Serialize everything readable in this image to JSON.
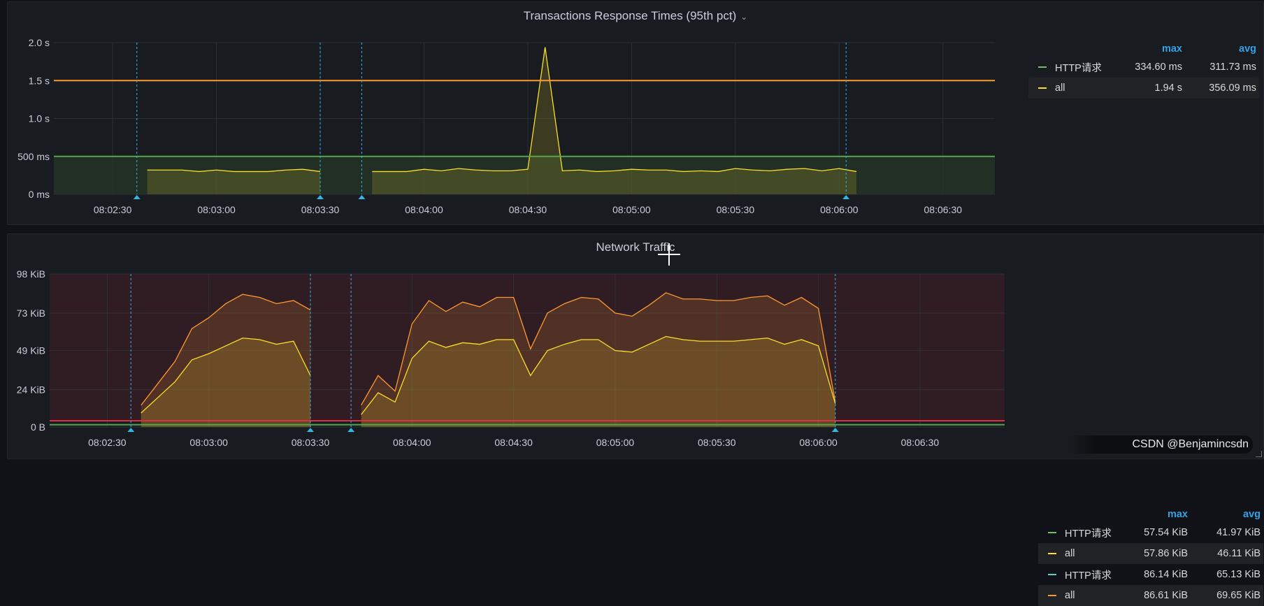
{
  "panels": [
    {
      "title": "Transactions Response Times (95th pct)",
      "legend": {
        "headers": [
          "max",
          "avg"
        ],
        "rows": [
          {
            "name": "HTTP请求",
            "color": "#73bf69",
            "max": "334.60 ms",
            "avg": "311.73 ms"
          },
          {
            "name": "all",
            "color": "#fade2a",
            "max": "1.94 s",
            "avg": "356.09 ms"
          }
        ]
      }
    },
    {
      "title": "Network Traffic",
      "legend": {
        "headers": [
          "max",
          "avg"
        ],
        "rows": [
          {
            "name": "HTTP请求",
            "color": "#73bf69",
            "max": "57.54 KiB",
            "avg": "41.97 KiB"
          },
          {
            "name": "all",
            "color": "#fade2a",
            "max": "57.86 KiB",
            "avg": "46.11 KiB"
          },
          {
            "name": "HTTP请求",
            "color": "#5ad0c8",
            "max": "86.14 KiB",
            "avg": "65.13 KiB"
          },
          {
            "name": "all",
            "color": "#ff9830",
            "max": "86.61 KiB",
            "avg": "69.65 KiB"
          }
        ]
      }
    }
  ],
  "watermark": "CSDN @Benjamincsdn",
  "chart_data": [
    {
      "type": "line",
      "title": "Transactions Response Times (95th pct)",
      "x_unit": "time (HH:MM:SS)",
      "xlim": [
        "08:02:13",
        "08:06:45"
      ],
      "x_ticks": [
        "08:02:30",
        "08:03:00",
        "08:03:30",
        "08:04:00",
        "08:04:30",
        "08:05:00",
        "08:05:30",
        "08:06:00",
        "08:06:30"
      ],
      "y_unit": "s",
      "ylim": [
        0,
        2.0
      ],
      "y_ticks": [
        0,
        0.5,
        1.0,
        1.5,
        2.0
      ],
      "y_tick_labels": [
        "0 ms",
        "500 ms",
        "1.0 s",
        "1.5 s",
        "2.0 s"
      ],
      "thresholds": [
        {
          "value": 0.5,
          "color": "#56a64b",
          "fill_below": true
        },
        {
          "value": 1.5,
          "color": "#ff9830"
        }
      ],
      "annotations": [
        "08:02:37",
        "08:03:30",
        "08:03:42",
        "08:06:02"
      ],
      "series": [
        {
          "name": "all",
          "color": "#fade2a",
          "segments": [
            [
              [
                "08:02:40",
                0.32
              ],
              [
                "08:02:45",
                0.32
              ],
              [
                "08:02:50",
                0.32
              ],
              [
                "08:02:55",
                0.3
              ],
              [
                "08:03:00",
                0.32
              ],
              [
                "08:03:05",
                0.3
              ],
              [
                "08:03:10",
                0.3
              ],
              [
                "08:03:15",
                0.3
              ],
              [
                "08:03:20",
                0.32
              ],
              [
                "08:03:25",
                0.33
              ],
              [
                "08:03:30",
                0.3
              ]
            ],
            [
              [
                "08:03:45",
                0.3
              ],
              [
                "08:03:50",
                0.3
              ],
              [
                "08:03:55",
                0.3
              ],
              [
                "08:04:00",
                0.33
              ],
              [
                "08:04:05",
                0.31
              ],
              [
                "08:04:10",
                0.34
              ],
              [
                "08:04:15",
                0.32
              ],
              [
                "08:04:20",
                0.31
              ],
              [
                "08:04:25",
                0.31
              ],
              [
                "08:04:30",
                0.33
              ],
              [
                "08:04:35",
                1.94
              ],
              [
                "08:04:40",
                0.31
              ],
              [
                "08:04:45",
                0.32
              ],
              [
                "08:04:50",
                0.3
              ],
              [
                "08:04:55",
                0.31
              ],
              [
                "08:05:00",
                0.33
              ],
              [
                "08:05:05",
                0.32
              ],
              [
                "08:05:10",
                0.32
              ],
              [
                "08:05:15",
                0.3
              ],
              [
                "08:05:20",
                0.31
              ],
              [
                "08:05:25",
                0.3
              ],
              [
                "08:05:30",
                0.34
              ],
              [
                "08:05:35",
                0.32
              ],
              [
                "08:05:40",
                0.31
              ],
              [
                "08:05:45",
                0.33
              ],
              [
                "08:05:50",
                0.34
              ],
              [
                "08:05:55",
                0.31
              ],
              [
                "08:06:00",
                0.34
              ],
              [
                "08:06:05",
                0.3
              ]
            ]
          ]
        }
      ]
    },
    {
      "type": "area",
      "title": "Network Traffic",
      "x_unit": "time (HH:MM:SS)",
      "xlim": [
        "08:02:13",
        "08:06:55"
      ],
      "x_ticks": [
        "08:02:30",
        "08:03:00",
        "08:03:30",
        "08:04:00",
        "08:04:30",
        "08:05:00",
        "08:05:30",
        "08:06:00",
        "08:06:30"
      ],
      "y_unit": "KiB",
      "ylim": [
        0,
        98
      ],
      "y_ticks": [
        0,
        24,
        49,
        73,
        98
      ],
      "y_tick_labels": [
        "0 B",
        "24 KiB",
        "49 KiB",
        "73 KiB",
        "98 KiB"
      ],
      "thresholds": [
        {
          "value": 4,
          "color": "#e02f44",
          "fill_above": true
        },
        {
          "value": 1.5,
          "color": "#56a64b"
        }
      ],
      "annotations": [
        "08:02:37",
        "08:03:30",
        "08:03:42",
        "08:06:05"
      ],
      "series": [
        {
          "name": "all",
          "color": "#ff9830",
          "segments": [
            [
              [
                "08:02:40",
                14
              ],
              [
                "08:02:45",
                28
              ],
              [
                "08:02:50",
                42
              ],
              [
                "08:02:55",
                63
              ],
              [
                "08:03:00",
                70
              ],
              [
                "08:03:05",
                79
              ],
              [
                "08:03:10",
                85
              ],
              [
                "08:03:15",
                83
              ],
              [
                "08:03:20",
                79
              ],
              [
                "08:03:25",
                81
              ],
              [
                "08:03:30",
                75
              ]
            ],
            [
              [
                "08:03:45",
                14
              ],
              [
                "08:03:50",
                33
              ],
              [
                "08:03:55",
                23
              ],
              [
                "08:04:00",
                66
              ],
              [
                "08:04:05",
                81
              ],
              [
                "08:04:10",
                74
              ],
              [
                "08:04:15",
                80
              ],
              [
                "08:04:20",
                77
              ],
              [
                "08:04:25",
                83
              ],
              [
                "08:04:30",
                83
              ],
              [
                "08:04:35",
                50
              ],
              [
                "08:04:40",
                73
              ],
              [
                "08:04:45",
                79
              ],
              [
                "08:04:50",
                83
              ],
              [
                "08:04:55",
                82
              ],
              [
                "08:05:00",
                73
              ],
              [
                "08:05:05",
                71
              ],
              [
                "08:05:10",
                78
              ],
              [
                "08:05:15",
                86
              ],
              [
                "08:05:20",
                82
              ],
              [
                "08:05:25",
                82
              ],
              [
                "08:05:30",
                81
              ],
              [
                "08:05:35",
                81
              ],
              [
                "08:05:40",
                83
              ],
              [
                "08:05:45",
                84
              ],
              [
                "08:05:50",
                78
              ],
              [
                "08:05:55",
                83
              ],
              [
                "08:06:00",
                76
              ],
              [
                "08:06:05",
                16
              ]
            ]
          ]
        },
        {
          "name": "all",
          "color": "#fade2a",
          "segments": [
            [
              [
                "08:02:40",
                9
              ],
              [
                "08:02:45",
                19
              ],
              [
                "08:02:50",
                29
              ],
              [
                "08:02:55",
                43
              ],
              [
                "08:03:00",
                47
              ],
              [
                "08:03:05",
                52
              ],
              [
                "08:03:10",
                57
              ],
              [
                "08:03:15",
                56
              ],
              [
                "08:03:20",
                53
              ],
              [
                "08:03:25",
                55
              ],
              [
                "08:03:30",
                33
              ]
            ],
            [
              [
                "08:03:45",
                8
              ],
              [
                "08:03:50",
                22
              ],
              [
                "08:03:55",
                16
              ],
              [
                "08:04:00",
                44
              ],
              [
                "08:04:05",
                55
              ],
              [
                "08:04:10",
                51
              ],
              [
                "08:04:15",
                54
              ],
              [
                "08:04:20",
                53
              ],
              [
                "08:04:25",
                56
              ],
              [
                "08:04:30",
                56
              ],
              [
                "08:04:35",
                33
              ],
              [
                "08:04:40",
                49
              ],
              [
                "08:04:45",
                53
              ],
              [
                "08:04:50",
                56
              ],
              [
                "08:04:55",
                56
              ],
              [
                "08:05:00",
                49
              ],
              [
                "08:05:05",
                48
              ],
              [
                "08:05:10",
                53
              ],
              [
                "08:05:15",
                58
              ],
              [
                "08:05:20",
                56
              ],
              [
                "08:05:25",
                55
              ],
              [
                "08:05:30",
                55
              ],
              [
                "08:05:35",
                55
              ],
              [
                "08:05:40",
                56
              ],
              [
                "08:05:45",
                57
              ],
              [
                "08:05:50",
                53
              ],
              [
                "08:05:55",
                56
              ],
              [
                "08:06:00",
                52
              ],
              [
                "08:06:05",
                15
              ]
            ]
          ]
        }
      ]
    }
  ]
}
